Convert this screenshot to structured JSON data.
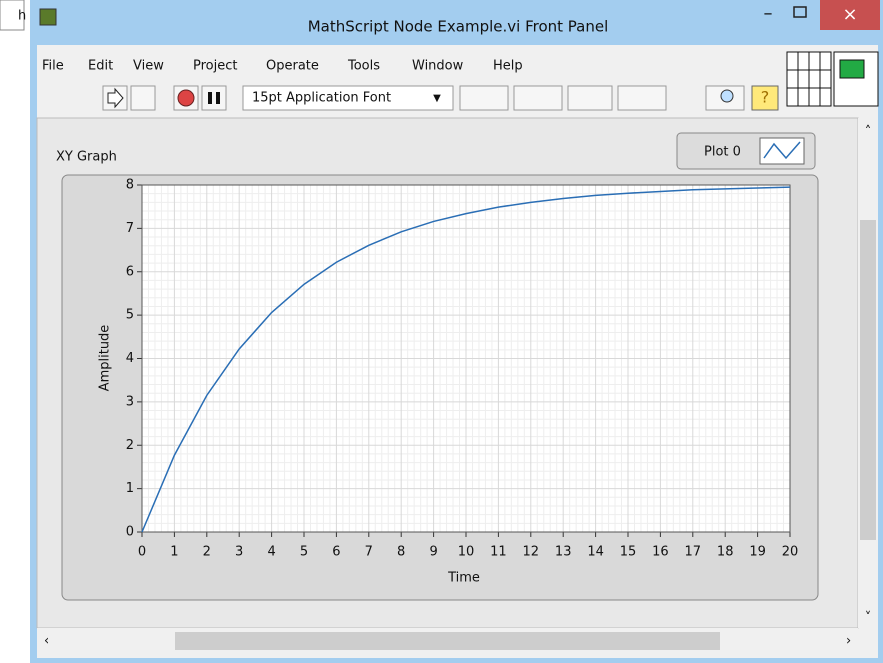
{
  "background_text": "h",
  "window": {
    "title": "MathScript Node Example.vi Front Panel"
  },
  "menu": [
    "File",
    "Edit",
    "View",
    "Project",
    "Operate",
    "Tools",
    "Window",
    "Help"
  ],
  "toolbar": {
    "font": "15pt Application Font"
  },
  "chart_data": {
    "type": "line",
    "title": "XY Graph",
    "x_label": "Time",
    "y_label": "Amplitude",
    "x": [
      0,
      1,
      2,
      3,
      4,
      5,
      6,
      7,
      8,
      9,
      10,
      11,
      12,
      13,
      14,
      15,
      16,
      17,
      18,
      19,
      20
    ],
    "series": [
      {
        "name": "Plot 0",
        "color": "#2a6eb5",
        "values": [
          0,
          1.77,
          3.15,
          4.22,
          5.06,
          5.71,
          6.22,
          6.61,
          6.92,
          7.16,
          7.34,
          7.49,
          7.6,
          7.69,
          7.76,
          7.81,
          7.85,
          7.89,
          7.91,
          7.93,
          7.95
        ]
      }
    ],
    "xlim": [
      0,
      20
    ],
    "xticks": [
      0,
      1,
      2,
      3,
      4,
      5,
      6,
      7,
      8,
      9,
      10,
      11,
      12,
      13,
      14,
      15,
      16,
      17,
      18,
      19,
      20
    ],
    "ylim": [
      0,
      8
    ],
    "yticks": [
      0,
      1,
      2,
      3,
      4,
      5,
      6,
      7,
      8
    ],
    "grid": true,
    "minor_grid": true
  }
}
